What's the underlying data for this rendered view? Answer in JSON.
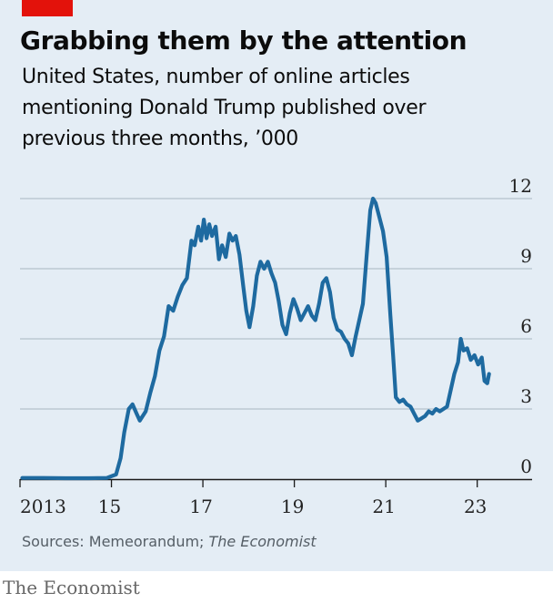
{
  "header": {
    "title": "Grabbing them by the attention",
    "subtitle": "United States, number of online articles mentioning Donald Trump published over previous three months, ’000"
  },
  "footer": {
    "source_prefix": "Sources: Memeorandum; ",
    "source_italic": "The Economist",
    "brand": "The Economist"
  },
  "colors": {
    "accent": "#e3120b",
    "line": "#1e6aa0",
    "panel": "#e4edf5",
    "grid": "#b3c1cc"
  },
  "chart_data": {
    "type": "line",
    "ylim": [
      0,
      12
    ],
    "yticks": [
      "0",
      "3",
      "6",
      "9",
      "12"
    ],
    "xlim": [
      2013.0,
      2024.2
    ],
    "xticks": [
      {
        "x": 2013,
        "label": "2013"
      },
      {
        "x": 2015,
        "label": "15"
      },
      {
        "x": 2017,
        "label": "17"
      },
      {
        "x": 2019,
        "label": "19"
      },
      {
        "x": 2021,
        "label": "21"
      },
      {
        "x": 2023,
        "label": "23"
      }
    ],
    "grid": true,
    "series": [
      {
        "points": [
          [
            2013.05,
            0.05
          ],
          [
            2013.5,
            0.05
          ],
          [
            2014.0,
            0.04
          ],
          [
            2014.5,
            0.04
          ],
          [
            2014.9,
            0.05
          ],
          [
            2015.1,
            0.2
          ],
          [
            2015.2,
            0.9
          ],
          [
            2015.28,
            2.0
          ],
          [
            2015.38,
            3.0
          ],
          [
            2015.46,
            3.2
          ],
          [
            2015.55,
            2.8
          ],
          [
            2015.62,
            2.5
          ],
          [
            2015.75,
            2.9
          ],
          [
            2015.85,
            3.7
          ],
          [
            2015.95,
            4.4
          ],
          [
            2016.05,
            5.5
          ],
          [
            2016.15,
            6.1
          ],
          [
            2016.25,
            7.4
          ],
          [
            2016.35,
            7.2
          ],
          [
            2016.45,
            7.8
          ],
          [
            2016.55,
            8.3
          ],
          [
            2016.65,
            8.6
          ],
          [
            2016.75,
            10.2
          ],
          [
            2016.82,
            10.0
          ],
          [
            2016.9,
            10.8
          ],
          [
            2016.96,
            10.2
          ],
          [
            2017.02,
            11.1
          ],
          [
            2017.08,
            10.3
          ],
          [
            2017.14,
            10.9
          ],
          [
            2017.2,
            10.4
          ],
          [
            2017.28,
            10.8
          ],
          [
            2017.35,
            9.4
          ],
          [
            2017.42,
            10.0
          ],
          [
            2017.5,
            9.5
          ],
          [
            2017.58,
            10.5
          ],
          [
            2017.65,
            10.2
          ],
          [
            2017.72,
            10.4
          ],
          [
            2017.8,
            9.6
          ],
          [
            2017.88,
            8.3
          ],
          [
            2017.95,
            7.2
          ],
          [
            2018.02,
            6.5
          ],
          [
            2018.1,
            7.4
          ],
          [
            2018.18,
            8.7
          ],
          [
            2018.26,
            9.3
          ],
          [
            2018.34,
            9.0
          ],
          [
            2018.42,
            9.3
          ],
          [
            2018.5,
            8.8
          ],
          [
            2018.58,
            8.4
          ],
          [
            2018.66,
            7.6
          ],
          [
            2018.74,
            6.6
          ],
          [
            2018.82,
            6.2
          ],
          [
            2018.9,
            7.1
          ],
          [
            2018.98,
            7.7
          ],
          [
            2019.06,
            7.3
          ],
          [
            2019.14,
            6.8
          ],
          [
            2019.22,
            7.1
          ],
          [
            2019.3,
            7.4
          ],
          [
            2019.38,
            7.0
          ],
          [
            2019.46,
            6.8
          ],
          [
            2019.54,
            7.5
          ],
          [
            2019.62,
            8.4
          ],
          [
            2019.7,
            8.6
          ],
          [
            2019.78,
            8.0
          ],
          [
            2019.86,
            6.9
          ],
          [
            2019.94,
            6.4
          ],
          [
            2020.02,
            6.3
          ],
          [
            2020.1,
            6.0
          ],
          [
            2020.18,
            5.8
          ],
          [
            2020.26,
            5.3
          ],
          [
            2020.34,
            6.1
          ],
          [
            2020.42,
            6.8
          ],
          [
            2020.5,
            7.5
          ],
          [
            2020.58,
            9.5
          ],
          [
            2020.66,
            11.5
          ],
          [
            2020.72,
            12.0
          ],
          [
            2020.78,
            11.8
          ],
          [
            2020.86,
            11.2
          ],
          [
            2020.94,
            10.6
          ],
          [
            2021.02,
            9.5
          ],
          [
            2021.1,
            7.0
          ],
          [
            2021.16,
            5.3
          ],
          [
            2021.22,
            3.5
          ],
          [
            2021.3,
            3.3
          ],
          [
            2021.38,
            3.4
          ],
          [
            2021.46,
            3.2
          ],
          [
            2021.54,
            3.1
          ],
          [
            2021.62,
            2.8
          ],
          [
            2021.7,
            2.5
          ],
          [
            2021.78,
            2.6
          ],
          [
            2021.86,
            2.7
          ],
          [
            2021.94,
            2.9
          ],
          [
            2022.02,
            2.8
          ],
          [
            2022.1,
            3.0
          ],
          [
            2022.18,
            2.9
          ],
          [
            2022.26,
            3.0
          ],
          [
            2022.34,
            3.1
          ],
          [
            2022.42,
            3.8
          ],
          [
            2022.5,
            4.5
          ],
          [
            2022.58,
            5.0
          ],
          [
            2022.64,
            6.0
          ],
          [
            2022.7,
            5.5
          ],
          [
            2022.78,
            5.6
          ],
          [
            2022.86,
            5.1
          ],
          [
            2022.94,
            5.3
          ],
          [
            2023.02,
            4.9
          ],
          [
            2023.1,
            5.2
          ],
          [
            2023.16,
            4.2
          ],
          [
            2023.22,
            4.1
          ],
          [
            2023.26,
            4.5
          ]
        ]
      }
    ]
  }
}
